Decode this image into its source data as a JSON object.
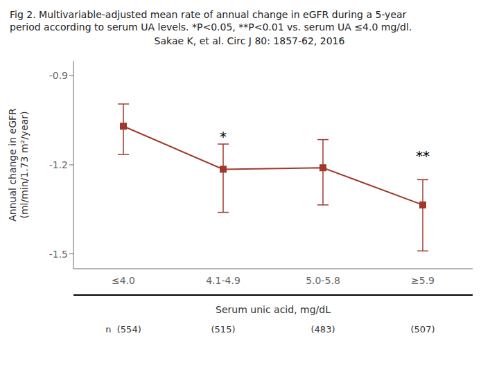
{
  "chart_data": {
    "type": "line",
    "title": "Fig 2. Multivariable-adjusted mean rate of annual change in eGFR during a 5-year\nperiod according to serum UA levels. *P<0.05, **P<0.01 vs. serum UA ≤4.0 mg/dl.",
    "subtitle": "Sakae K, et al. Circ J 80: 1857-62, 2016",
    "x_label": "Serum unic acid, mg/dL",
    "y_label": "Annual change in eGFR\n(ml/min/1.73 m²/year)",
    "categories": [
      "≤4.0",
      "4.1-4.9",
      "5.0-5.8",
      "≥5.9"
    ],
    "values": [
      -1.07,
      -1.215,
      -1.21,
      -1.335
    ],
    "error_upper": [
      0.075,
      0.085,
      0.095,
      0.085
    ],
    "error_lower": [
      0.095,
      0.145,
      0.125,
      0.155
    ],
    "n_labels": [
      "n  (554)",
      "(515)",
      "(483)",
      "(507)"
    ],
    "color": "#a0392b",
    "marker": "square",
    "line_style": "solid",
    "ylim": [
      -1.55,
      -0.85
    ],
    "yticks": [
      -1.5,
      -1.2,
      -0.9
    ],
    "annotations": [
      {
        "x": "4.1-4.9",
        "y": -1.12,
        "text": "*"
      },
      {
        "x": "≥5.9",
        "y": -1.185,
        "text": "**"
      }
    ]
  }
}
